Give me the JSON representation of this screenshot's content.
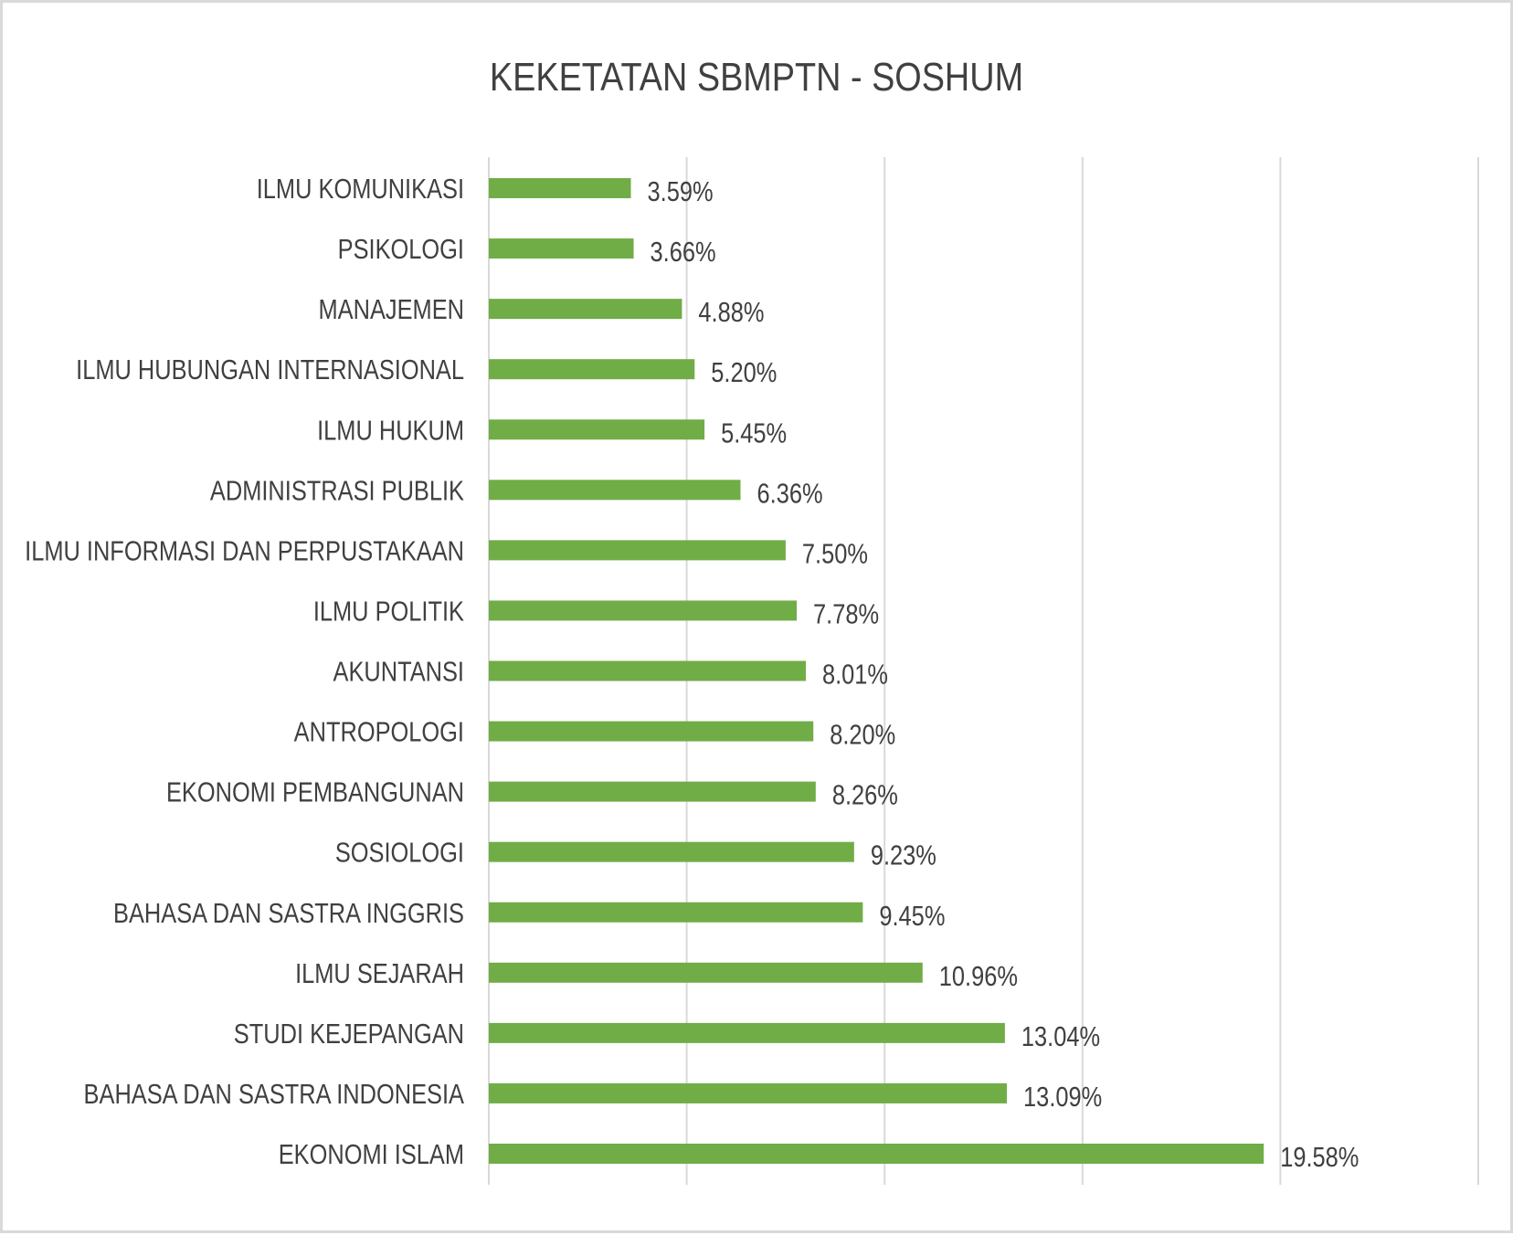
{
  "chart_data": {
    "type": "bar",
    "orientation": "horizontal",
    "title": "KEKETATAN SBMPTN - SOSHUM",
    "xlabel": "",
    "ylabel": "",
    "xlim": [
      0,
      25
    ],
    "grid": true,
    "unit": "%",
    "bar_color": "#70AD47",
    "categories": [
      "ILMU KOMUNIKASI",
      "PSIKOLOGI",
      "MANAJEMEN",
      "ILMU HUBUNGAN INTERNASIONAL",
      "ILMU HUKUM",
      "ADMINISTRASI PUBLIK",
      "ILMU INFORMASI DAN PERPUSTAKAAN",
      "ILMU POLITIK",
      "AKUNTANSI",
      "ANTROPOLOGI",
      "EKONOMI PEMBANGUNAN",
      "SOSIOLOGI",
      "BAHASA DAN SASTRA INGGRIS",
      "ILMU SEJARAH",
      "STUDI KEJEPANGAN",
      "BAHASA DAN SASTRA INDONESIA",
      "EKONOMI ISLAM"
    ],
    "values": [
      3.59,
      3.66,
      4.88,
      5.2,
      5.45,
      6.36,
      7.5,
      7.78,
      8.01,
      8.2,
      8.26,
      9.23,
      9.45,
      10.96,
      13.04,
      13.09,
      19.58
    ],
    "data_labels": [
      "3.59%",
      "3.66%",
      "4.88%",
      "5.20%",
      "5.45%",
      "6.36%",
      "7.50%",
      "7.78%",
      "8.01%",
      "8.20%",
      "8.26%",
      "9.23%",
      "9.45%",
      "10.96%",
      "13.04%",
      "13.09%",
      "19.58%"
    ]
  }
}
